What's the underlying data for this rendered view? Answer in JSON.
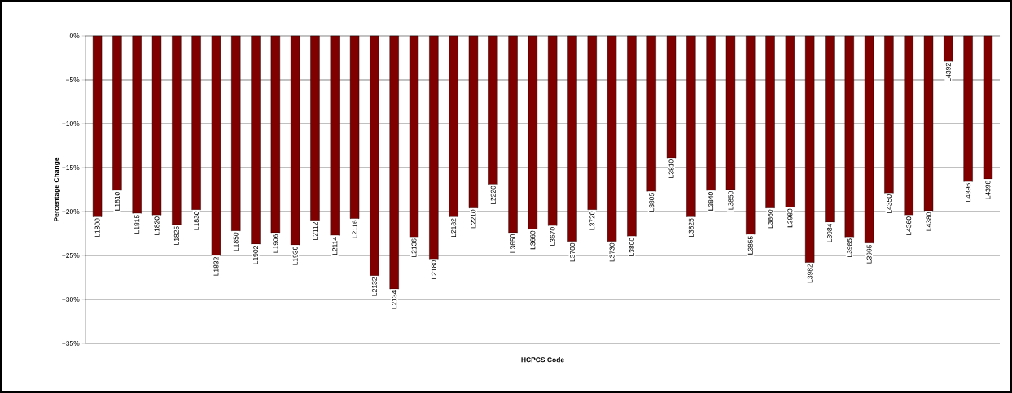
{
  "chart_data": {
    "type": "bar",
    "xlabel": "HCPCS Code",
    "ylabel": "Percentage Change",
    "categories": [
      "L1800",
      "L1810",
      "L1815",
      "L1820",
      "L1825",
      "L1830",
      "L1832",
      "L1850",
      "L1902",
      "L1906",
      "L1930",
      "L2112",
      "L2114",
      "L2116",
      "L2132",
      "L2134",
      "L2136",
      "L2180",
      "L2182",
      "L2210",
      "L2220",
      "L3650",
      "L3660",
      "L3670",
      "L3700",
      "L3720",
      "L3730",
      "L3800",
      "L3805",
      "L3810",
      "L3825",
      "L3840",
      "L3850",
      "L3855",
      "L3860",
      "L3980",
      "L3982",
      "L3984",
      "L3985",
      "L3995",
      "L4350",
      "L4360",
      "L4380",
      "L4392",
      "L4396",
      "L4398"
    ],
    "values": [
      -20.6,
      -17.6,
      -20.2,
      -20.4,
      -21.5,
      -19.8,
      -25.0,
      -22.2,
      -23.7,
      -22.4,
      -23.8,
      -21.0,
      -22.7,
      -20.8,
      -27.3,
      -28.8,
      -22.9,
      -25.4,
      -20.6,
      -19.6,
      -16.9,
      -22.4,
      -22.0,
      -21.6,
      -23.4,
      -19.8,
      -23.4,
      -22.8,
      -17.7,
      -13.9,
      -20.6,
      -17.6,
      -17.5,
      -22.6,
      -19.6,
      -19.5,
      -25.8,
      -21.2,
      -22.9,
      -23.6,
      -17.9,
      -20.4,
      -19.9,
      -2.9,
      -16.6,
      -16.3
    ],
    "color": "#800000",
    "ylim": [
      -35,
      0
    ],
    "yticks": [
      {
        "value": 0,
        "label": "0%"
      },
      {
        "value": -5,
        "label": "−5%"
      },
      {
        "value": -10,
        "label": "−10%"
      },
      {
        "value": -15,
        "label": "−15%"
      },
      {
        "value": -20,
        "label": "−20%"
      },
      {
        "value": -25,
        "label": "−25%"
      },
      {
        "value": -30,
        "label": "−30%"
      },
      {
        "value": -35,
        "label": "−35%"
      }
    ],
    "grid": "y"
  }
}
